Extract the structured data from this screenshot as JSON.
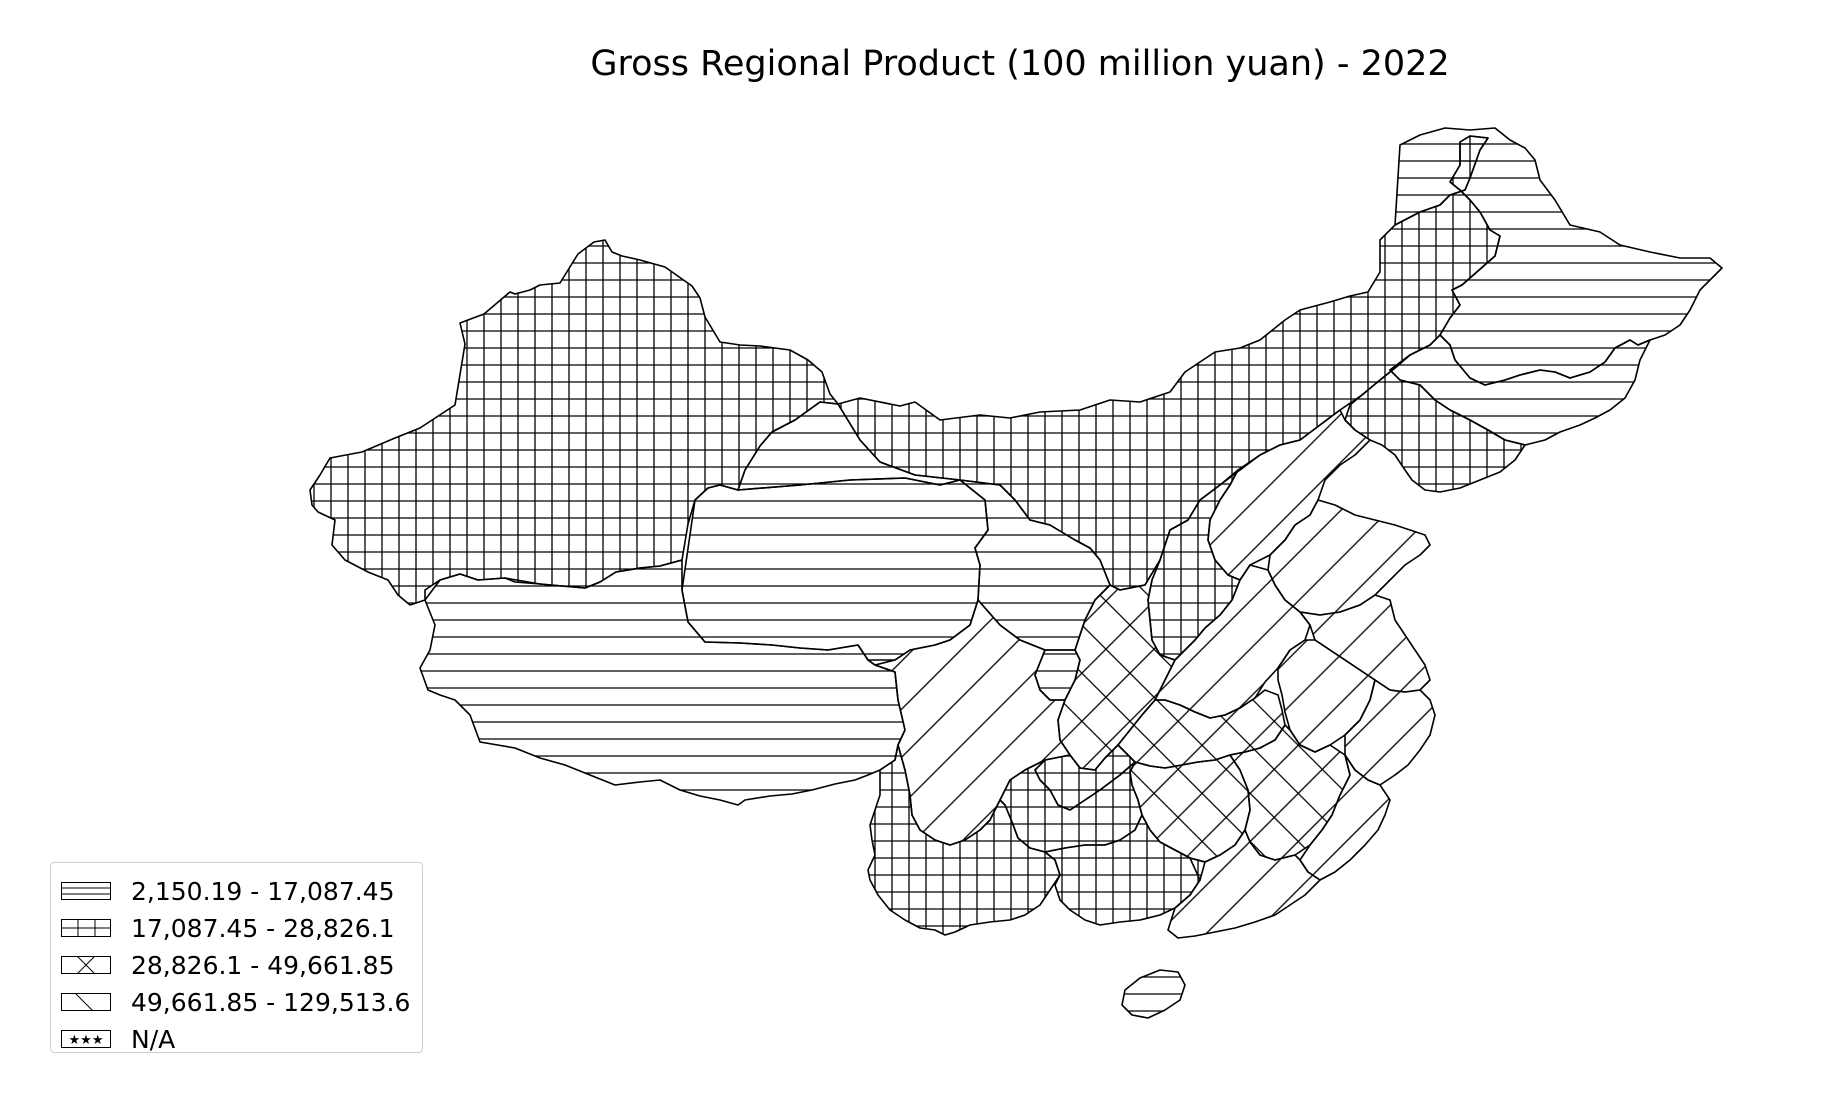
{
  "title": "Gross Regional Product (100 million yuan) - 2022",
  "classes": [
    {
      "label": "2,150.19 - 17,087.45",
      "pattern": "horizontal-lines"
    },
    {
      "label": "17,087.45 - 28,826.1",
      "pattern": "grid"
    },
    {
      "label": "28,826.1 - 49,661.85",
      "pattern": "cross-diagonal"
    },
    {
      "label": "49,661.85 - 129,513.6",
      "pattern": "diagonal"
    },
    {
      "label": "N/A",
      "pattern": "stars"
    }
  ],
  "style": {
    "stroke": "#000000",
    "fill": "#ffffff",
    "legend_border": "#cfcfcf"
  }
}
